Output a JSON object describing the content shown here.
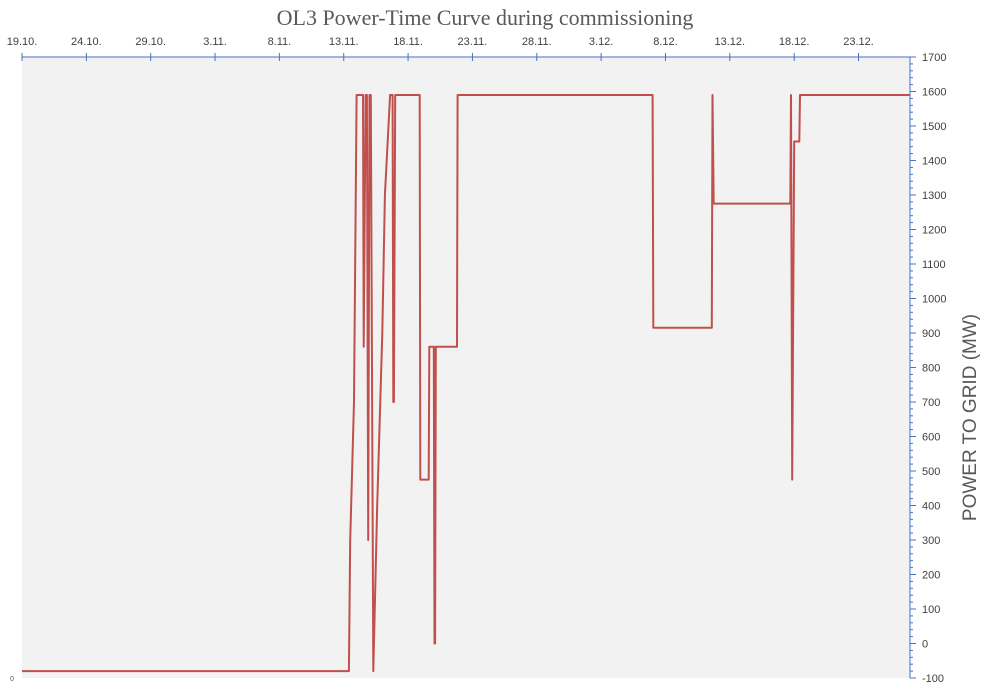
{
  "chart_data": {
    "type": "line",
    "title": "OL3 Power-Time Curve during commissioning",
    "ylabel": "POWER TO GRID (MW)",
    "xlabel": "",
    "corner_label": "0",
    "x_ticks": [
      "19.10.",
      "24.10.",
      "29.10.",
      "3.11.",
      "8.11.",
      "13.11.",
      "18.11.",
      "23.11.",
      "28.11.",
      "3.12.",
      "8.12.",
      "13.12.",
      "18.12.",
      "23.12."
    ],
    "x_range_days": [
      0,
      69
    ],
    "y_ticks": [
      -100,
      0,
      100,
      200,
      300,
      400,
      500,
      600,
      700,
      800,
      900,
      1000,
      1100,
      1200,
      1300,
      1400,
      1500,
      1600,
      1700
    ],
    "ylim": [
      -100,
      1700
    ],
    "grid": false,
    "plot_background": "#f2f2f2",
    "axis_color": "#4472c4",
    "series": [
      {
        "color": "#c0504d",
        "x": [
          0,
          25.4,
          25.5,
          25.8,
          26.0,
          26.1,
          26.5,
          26.55,
          26.7,
          26.8,
          26.9,
          27.0,
          27.1,
          27.3,
          27.6,
          28.0,
          28.2,
          28.6,
          28.8,
          28.85,
          28.9,
          29.0,
          30.9,
          30.95,
          31.6,
          31.65,
          32.0,
          32.05,
          32.1,
          32.15,
          33.8,
          33.85,
          49.0,
          49.05,
          53.6,
          53.65,
          53.75,
          53.8,
          59.7,
          59.75,
          59.85,
          60.0,
          60.05,
          60.4,
          60.45,
          60.6,
          61.0,
          62.0,
          69
        ],
        "values": [
          -80,
          -80,
          300,
          700,
          1590,
          1590,
          1590,
          860,
          1590,
          1590,
          300,
          1590,
          1590,
          -80,
          400,
          900,
          1300,
          1590,
          1590,
          700,
          700,
          1590,
          1590,
          475,
          475,
          860,
          860,
          0,
          0,
          860,
          860,
          1590,
          1590,
          915,
          915,
          1590,
          1275,
          1275,
          1275,
          1590,
          475,
          1455,
          1455,
          1455,
          1590,
          1590,
          1590,
          1590,
          1590
        ]
      }
    ]
  }
}
